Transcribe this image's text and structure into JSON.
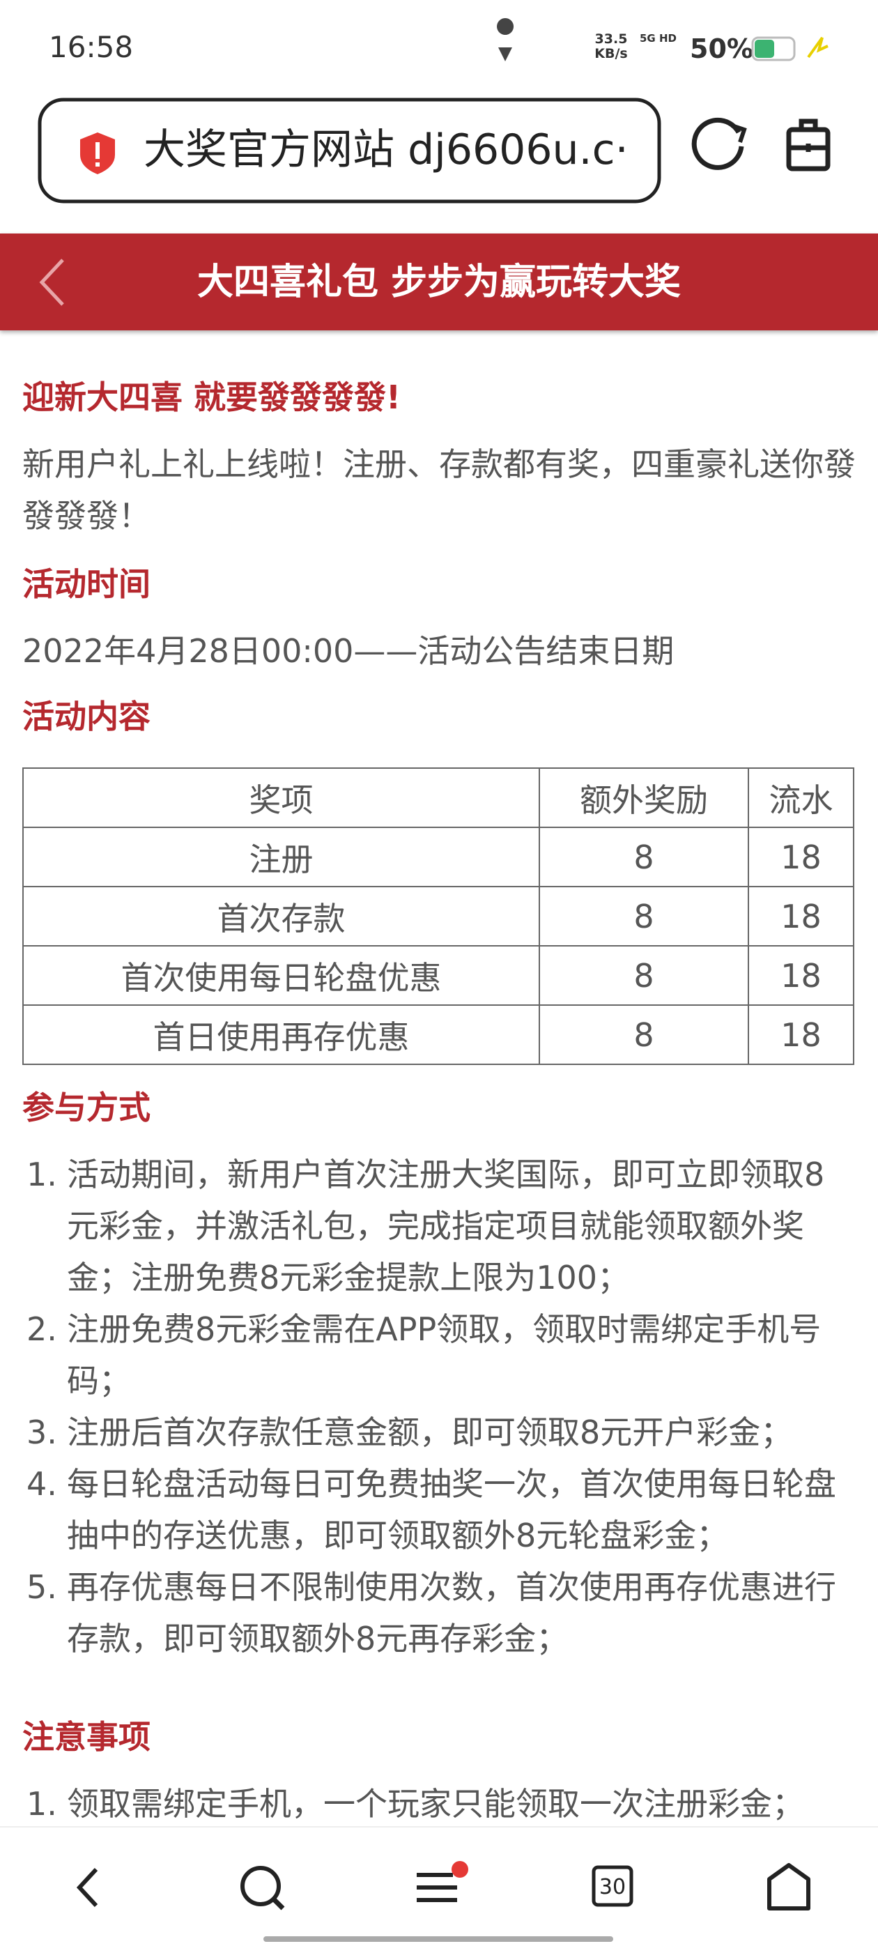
{
  "status_bar": {
    "time": "16:58",
    "speed": "33.5 KB/s",
    "network": "5G HD",
    "battery": "50%"
  },
  "address_bar": {
    "url": "大奖官方网站 dj6606u.c···"
  },
  "header": {
    "title": "大四喜礼包 步步为赢玩转大奖"
  },
  "content": {
    "intro_title": "迎新大四喜 就要發發發發!",
    "intro_text": "新用户礼上礼上线啦！注册、存款都有奖，四重豪礼送你發發發發！",
    "time_title": "活动时间",
    "time_text": "2022年4月28日00:00——活动公告结束日期",
    "content_title": "活动内容",
    "table": {
      "header": [
        "奖项",
        "额外奖励",
        "流水"
      ],
      "rows": [
        [
          "注册",
          "8",
          "18"
        ],
        [
          "首次存款",
          "8",
          "18"
        ],
        [
          "首次使用每日轮盘优惠",
          "8",
          "18"
        ],
        [
          "首日使用再存优惠",
          "8",
          "18"
        ]
      ]
    },
    "method_title": "参与方式",
    "method_items": [
      {
        "num": "1.",
        "text": "活动期间，新用户首次注册大奖国际，即可立即领取8元彩金，并激活礼包，完成指定项目就能领取额外奖金；注册免费8元彩金提款上限为100；"
      },
      {
        "num": "2.",
        "text": "注册免费8元彩金需在APP领取，领取时需绑定手机号码；"
      },
      {
        "num": "3.",
        "text": "注册后首次存款任意金额，即可领取8元开户彩金；"
      },
      {
        "num": "4.",
        "text": "每日轮盘活动每日可免费抽奖一次，首次使用每日轮盘抽中的存送优惠，即可领取额外8元轮盘彩金；"
      },
      {
        "num": "5.",
        "text": "再存优惠每日不限制使用次数，首次使用再存优惠进行存款，即可领取额外8元再存彩金；"
      }
    ],
    "notes_title": "注意事项",
    "notes_items": [
      {
        "num": "1.",
        "text": "领取需绑定手机，一个玩家只能领取一次注册彩金；"
      }
    ]
  },
  "bottom_nav": {
    "tabs_count": "30"
  }
}
